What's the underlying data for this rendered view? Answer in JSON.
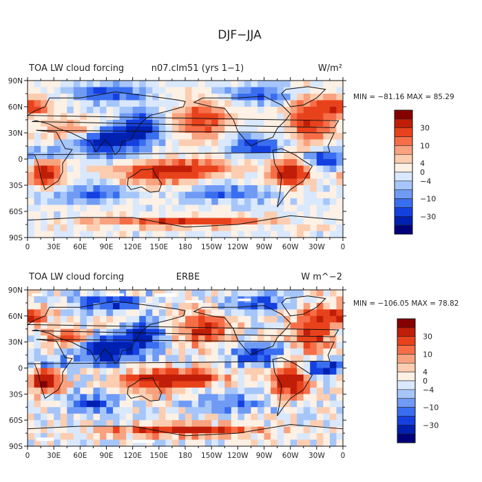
{
  "figure": {
    "title": "DJF−JJA"
  },
  "panels": [
    {
      "left_title": "TOA LW cloud forcing",
      "center_title": "n07.clm51 (yrs 1−1)",
      "units": "W/m²",
      "stats": "MIN = −81.16  MAX =  85.29",
      "colorbar_labels": [
        "30",
        "10",
        "4",
        "0",
        "−4",
        "−10",
        "−30"
      ]
    },
    {
      "left_title": "TOA LW cloud forcing",
      "center_title": "ERBE",
      "units": "W m^−2",
      "stats": "MIN = −106.05  MAX =  78.82",
      "colorbar_labels": [
        "30",
        "10",
        "4",
        "0",
        "−4",
        "−10",
        "−30"
      ]
    }
  ],
  "axes": {
    "lat_labels": [
      "90N",
      "60N",
      "30N",
      "0",
      "30S",
      "60S",
      "90S"
    ],
    "lon_labels": [
      "0",
      "30E",
      "60E",
      "90E",
      "120E",
      "150E",
      "180",
      "150W",
      "120W",
      "90W",
      "60W",
      "30W",
      "0"
    ]
  },
  "colors": {
    "scale": [
      "#00007a",
      "#0020b0",
      "#1540e0",
      "#3a6ef0",
      "#6f9bf5",
      "#a6c6fa",
      "#d9e8fd",
      "#fdf0e4",
      "#fccdb0",
      "#f9a27f",
      "#f56e48",
      "#e8421c",
      "#c01e08",
      "#870000"
    ]
  }
}
